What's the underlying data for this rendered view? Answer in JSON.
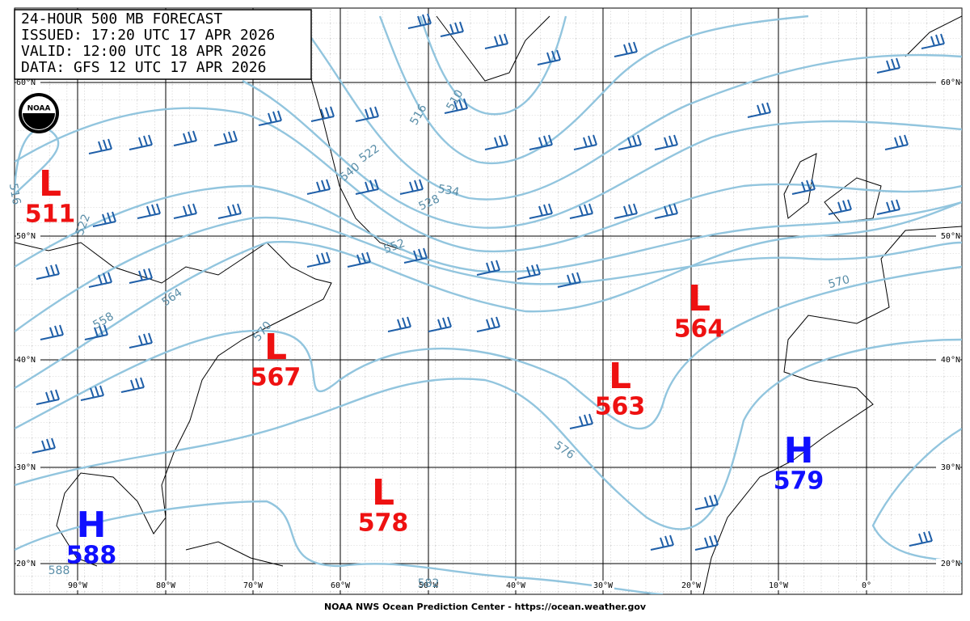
{
  "header": {
    "lines": [
      "24-HOUR 500 MB FORECAST",
      "ISSUED: 17:20 UTC 17 APR 2026",
      "VALID:  12:00 UTC 18 APR 2026",
      "DATA:  GFS 12 UTC 17 APR 2026"
    ]
  },
  "logo": "NOAA",
  "lat_labels": [
    "60°N",
    "50°N",
    "40°N",
    "30°N",
    "20°N"
  ],
  "lon_labels": [
    "90°W",
    "80°W",
    "70°W",
    "60°W",
    "50°W",
    "40°W",
    "30°W",
    "20°W",
    "10°W",
    "0°"
  ],
  "centers": [
    {
      "type": "L",
      "value": 511
    },
    {
      "type": "L",
      "value": 567
    },
    {
      "type": "L",
      "value": 564
    },
    {
      "type": "L",
      "value": 563
    },
    {
      "type": "L",
      "value": 578
    },
    {
      "type": "H",
      "value": 579
    },
    {
      "type": "H",
      "value": 588
    }
  ],
  "contour_labels": [
    510,
    516,
    522,
    528,
    534,
    540,
    552,
    558,
    564,
    570,
    570,
    576,
    516,
    522,
    582,
    588
  ],
  "footer": "NOAA NWS Ocean Prediction Center - https://ocean.weather.gov"
}
